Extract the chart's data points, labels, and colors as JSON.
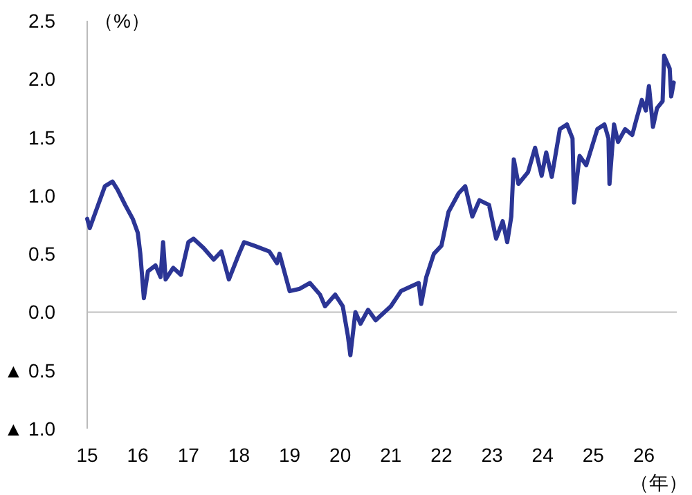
{
  "chart_data": {
    "type": "line",
    "ylabel": "（%）",
    "xlabel": "（年）",
    "xlim": [
      15,
      26.65
    ],
    "xticks": [
      15,
      16,
      17,
      18,
      19,
      20,
      21,
      22,
      23,
      24,
      25,
      26
    ],
    "ylim": [
      -1.0,
      2.5
    ],
    "yticks": [
      {
        "value": -1.0,
        "label": "▲ 1.0"
      },
      {
        "value": -0.5,
        "label": "▲ 0.5"
      },
      "0.0",
      "0.5",
      "1.0",
      "1.5",
      "2.0",
      "2.5"
    ],
    "ref_lines": [
      {
        "axis": "y",
        "value": 0,
        "color": "#c0c0c0"
      }
    ],
    "marker": "none",
    "line_style": "solid",
    "series": [
      {
        "color": "#2b3595",
        "x": [
          15.0,
          15.05,
          15.2,
          15.35,
          15.5,
          15.6,
          15.75,
          15.9,
          16.0,
          16.05,
          16.12,
          16.2,
          16.35,
          16.45,
          16.5,
          16.55,
          16.7,
          16.85,
          17.0,
          17.1,
          17.3,
          17.5,
          17.65,
          17.8,
          18.0,
          18.1,
          18.3,
          18.6,
          18.75,
          18.8,
          19.0,
          19.2,
          19.4,
          19.6,
          19.7,
          19.9,
          20.05,
          20.15,
          20.2,
          20.3,
          20.4,
          20.55,
          20.7,
          21.0,
          21.2,
          21.4,
          21.55,
          21.6,
          21.7,
          21.85,
          22.0,
          22.14,
          22.34,
          22.47,
          22.61,
          22.75,
          22.94,
          23.08,
          23.21,
          23.3,
          23.38,
          23.43,
          23.52,
          23.71,
          23.85,
          23.98,
          24.07,
          24.18,
          24.34,
          24.48,
          24.59,
          24.62,
          24.73,
          24.86,
          25.08,
          25.22,
          25.3,
          25.32,
          25.41,
          25.49,
          25.63,
          25.77,
          25.85,
          25.96,
          26.04,
          26.1,
          26.18,
          26.26,
          26.37,
          26.4,
          26.51,
          26.54,
          26.59
        ],
        "values": [
          0.8,
          0.72,
          0.9,
          1.08,
          1.12,
          1.05,
          0.92,
          0.8,
          0.68,
          0.5,
          0.12,
          0.35,
          0.4,
          0.3,
          0.6,
          0.28,
          0.38,
          0.32,
          0.6,
          0.63,
          0.55,
          0.45,
          0.52,
          0.28,
          0.5,
          0.6,
          0.57,
          0.52,
          0.42,
          0.5,
          0.18,
          0.2,
          0.25,
          0.15,
          0.05,
          0.15,
          0.05,
          -0.2,
          -0.37,
          0.0,
          -0.1,
          0.02,
          -0.07,
          0.05,
          0.18,
          0.22,
          0.25,
          0.07,
          0.3,
          0.5,
          0.57,
          0.86,
          1.02,
          1.08,
          0.82,
          0.96,
          0.92,
          0.63,
          0.78,
          0.6,
          0.82,
          1.31,
          1.1,
          1.2,
          1.41,
          1.17,
          1.37,
          1.16,
          1.57,
          1.61,
          1.49,
          0.94,
          1.34,
          1.26,
          1.57,
          1.61,
          1.49,
          1.1,
          1.61,
          1.46,
          1.57,
          1.52,
          1.65,
          1.82,
          1.73,
          1.94,
          1.59,
          1.75,
          1.81,
          2.2,
          2.09,
          1.85,
          1.97
        ]
      }
    ]
  }
}
